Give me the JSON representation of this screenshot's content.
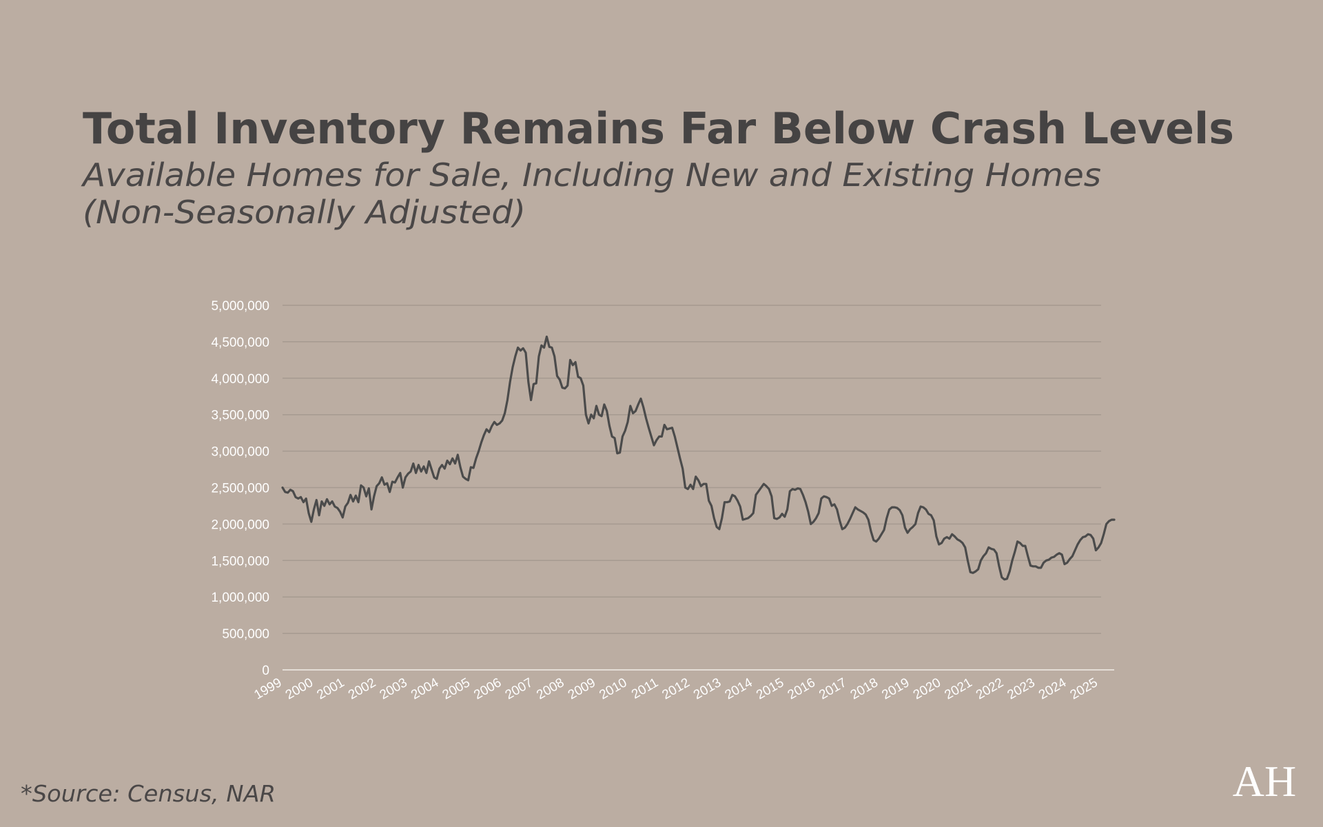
{
  "chart_data": {
    "type": "line",
    "title": "Total Inventory Remains Far Below Crash Levels",
    "subtitle": [
      "Available Homes for Sale, Including New and Existing Homes",
      "(Non-Seasonally Adjusted)"
    ],
    "source": "*Source: Census, NAR",
    "logo": "AH",
    "categories": [
      "1999",
      null,
      null,
      null,
      null,
      null,
      null,
      null,
      null,
      null,
      null,
      null,
      "2000",
      null,
      null,
      null,
      null,
      null,
      null,
      null,
      null,
      null,
      null,
      null,
      "2001",
      null,
      null,
      null,
      null,
      null,
      null,
      null,
      null,
      null,
      null,
      null,
      "2002",
      null,
      null,
      null,
      null,
      null,
      null,
      null,
      null,
      null,
      null,
      null,
      "2003",
      null,
      null,
      null,
      null,
      null,
      null,
      null,
      null,
      null,
      null,
      null,
      "2004",
      null,
      null,
      null,
      null,
      null,
      null,
      null,
      null,
      null,
      null,
      null,
      "2005",
      null,
      null,
      null,
      null,
      null,
      null,
      null,
      null,
      null,
      null,
      null,
      "2006",
      null,
      null,
      null,
      null,
      null,
      null,
      null,
      null,
      null,
      null,
      null,
      "2007",
      null,
      null,
      null,
      null,
      null,
      null,
      null,
      null,
      null,
      null,
      null,
      "2008",
      null,
      null,
      null,
      null,
      null,
      null,
      null,
      null,
      null,
      null,
      null,
      "2009",
      null,
      null,
      null,
      null,
      null,
      null,
      null,
      null,
      null,
      null,
      null,
      "2010",
      null,
      null,
      null,
      null,
      null,
      null,
      null,
      null,
      null,
      null,
      null,
      "2011",
      null,
      null,
      null,
      null,
      null,
      null,
      null,
      null,
      null,
      null,
      null,
      "2012",
      null,
      null,
      null,
      null,
      null,
      null,
      null,
      null,
      null,
      null,
      null,
      "2013",
      null,
      null,
      null,
      null,
      null,
      null,
      null,
      null,
      null,
      null,
      null,
      "2014",
      null,
      null,
      null,
      null,
      null,
      null,
      null,
      null,
      null,
      null,
      null,
      "2015",
      null,
      null,
      null,
      null,
      null,
      null,
      null,
      null,
      null,
      null,
      null,
      "2016",
      null,
      null,
      null,
      null,
      null,
      null,
      null,
      null,
      null,
      null,
      null,
      "2017",
      null,
      null,
      null,
      null,
      null,
      null,
      null,
      null,
      null,
      null,
      null,
      "2018",
      null,
      null,
      null,
      null,
      null,
      null,
      null,
      null,
      null,
      null,
      null,
      "2019",
      null,
      null,
      null,
      null,
      null,
      null,
      null,
      null,
      null,
      null,
      null,
      "2020",
      null,
      null,
      null,
      null,
      null,
      null,
      null,
      null,
      null,
      null,
      null,
      "2021",
      null,
      null,
      null,
      null,
      null,
      null,
      null,
      null,
      null,
      null,
      null,
      "2022",
      null,
      null,
      null,
      null,
      null,
      null,
      null,
      null,
      null,
      null,
      null,
      "2023",
      null,
      null,
      null,
      null,
      null,
      null,
      null,
      null,
      null,
      null,
      null,
      "2024",
      null,
      null,
      null,
      null,
      null,
      null,
      null,
      null,
      null,
      null,
      null,
      "2025",
      null,
      null,
      null,
      null,
      null,
      null
    ],
    "series": [
      {
        "name": "Total Inventory",
        "color": "#4b4b4b",
        "values": [
          2500000,
          2440000,
          2430000,
          2470000,
          2450000,
          2370000,
          2350000,
          2370000,
          2300000,
          2350000,
          2150000,
          2030000,
          2200000,
          2330000,
          2120000,
          2310000,
          2250000,
          2340000,
          2270000,
          2310000,
          2240000,
          2220000,
          2170000,
          2090000,
          2240000,
          2290000,
          2400000,
          2310000,
          2390000,
          2300000,
          2530000,
          2500000,
          2380000,
          2490000,
          2200000,
          2380000,
          2520000,
          2560000,
          2640000,
          2540000,
          2560000,
          2440000,
          2580000,
          2570000,
          2640000,
          2700000,
          2500000,
          2640000,
          2690000,
          2720000,
          2830000,
          2700000,
          2810000,
          2720000,
          2790000,
          2700000,
          2860000,
          2750000,
          2640000,
          2620000,
          2760000,
          2810000,
          2760000,
          2870000,
          2820000,
          2900000,
          2830000,
          2950000,
          2780000,
          2650000,
          2620000,
          2600000,
          2780000,
          2770000,
          2900000,
          3000000,
          3120000,
          3220000,
          3300000,
          3260000,
          3340000,
          3400000,
          3360000,
          3380000,
          3420000,
          3520000,
          3700000,
          3950000,
          4150000,
          4300000,
          4420000,
          4380000,
          4410000,
          4350000,
          3950000,
          3700000,
          3920000,
          3930000,
          4300000,
          4450000,
          4420000,
          4570000,
          4430000,
          4420000,
          4300000,
          4030000,
          3980000,
          3870000,
          3860000,
          3900000,
          4250000,
          4180000,
          4220000,
          4020000,
          4000000,
          3900000,
          3500000,
          3380000,
          3500000,
          3450000,
          3620000,
          3500000,
          3480000,
          3640000,
          3550000,
          3350000,
          3200000,
          3180000,
          2970000,
          2980000,
          3200000,
          3280000,
          3400000,
          3620000,
          3520000,
          3550000,
          3640000,
          3720000,
          3600000,
          3450000,
          3320000,
          3200000,
          3080000,
          3150000,
          3200000,
          3200000,
          3360000,
          3300000,
          3310000,
          3320000,
          3200000,
          3050000,
          2900000,
          2760000,
          2500000,
          2480000,
          2540000,
          2480000,
          2650000,
          2600000,
          2520000,
          2550000,
          2550000,
          2320000,
          2250000,
          2080000,
          1960000,
          1930000,
          2080000,
          2300000,
          2300000,
          2310000,
          2400000,
          2380000,
          2320000,
          2240000,
          2060000,
          2070000,
          2080000,
          2110000,
          2150000,
          2400000,
          2450000,
          2500000,
          2550000,
          2520000,
          2480000,
          2380000,
          2080000,
          2070000,
          2090000,
          2140000,
          2100000,
          2200000,
          2450000,
          2480000,
          2470000,
          2490000,
          2480000,
          2400000,
          2300000,
          2170000,
          2000000,
          2030000,
          2080000,
          2150000,
          2350000,
          2380000,
          2370000,
          2350000,
          2250000,
          2270000,
          2200000,
          2050000,
          1930000,
          1950000,
          2000000,
          2070000,
          2150000,
          2230000,
          2200000,
          2180000,
          2160000,
          2130000,
          2060000,
          1900000,
          1780000,
          1760000,
          1800000,
          1860000,
          1920000,
          2080000,
          2200000,
          2230000,
          2230000,
          2220000,
          2190000,
          2120000,
          1950000,
          1880000,
          1930000,
          1960000,
          2000000,
          2150000,
          2240000,
          2230000,
          2200000,
          2140000,
          2120000,
          2050000,
          1830000,
          1720000,
          1740000,
          1800000,
          1820000,
          1800000,
          1860000,
          1830000,
          1790000,
          1770000,
          1740000,
          1680000,
          1500000,
          1340000,
          1330000,
          1350000,
          1380000,
          1500000,
          1560000,
          1600000,
          1680000,
          1660000,
          1650000,
          1600000,
          1420000,
          1270000,
          1240000,
          1250000,
          1350000,
          1500000,
          1620000,
          1760000,
          1740000,
          1700000,
          1700000,
          1560000,
          1430000,
          1420000,
          1420000,
          1400000,
          1400000,
          1470000,
          1500000,
          1510000,
          1540000,
          1550000,
          1580000,
          1600000,
          1580000,
          1450000,
          1470000,
          1520000,
          1560000,
          1640000,
          1720000,
          1780000,
          1820000,
          1830000,
          1860000,
          1850000,
          1800000,
          1640000,
          1680000,
          1740000,
          1860000,
          2000000,
          2040000,
          2060000,
          2060000
        ]
      }
    ],
    "ylim": [
      0,
      5000000
    ],
    "yticks": [
      0,
      {
        "value": 500000,
        "label": "500,000"
      },
      {
        "value": 1000000,
        "label": "1,000,000"
      },
      {
        "value": 1500000,
        "label": "1,500,000"
      },
      {
        "value": 2000000,
        "label": "2,000,000"
      },
      {
        "value": 2500000,
        "label": "2,500,000"
      },
      {
        "value": 3000000,
        "label": "3,000,000"
      },
      {
        "value": 3500000,
        "label": "3,500,000"
      },
      {
        "value": 4000000,
        "label": "4,000,000"
      },
      {
        "value": 4500000,
        "label": "4,500,000"
      },
      {
        "value": 5000000,
        "label": "5,000,000"
      }
    ],
    "grid": true
  }
}
